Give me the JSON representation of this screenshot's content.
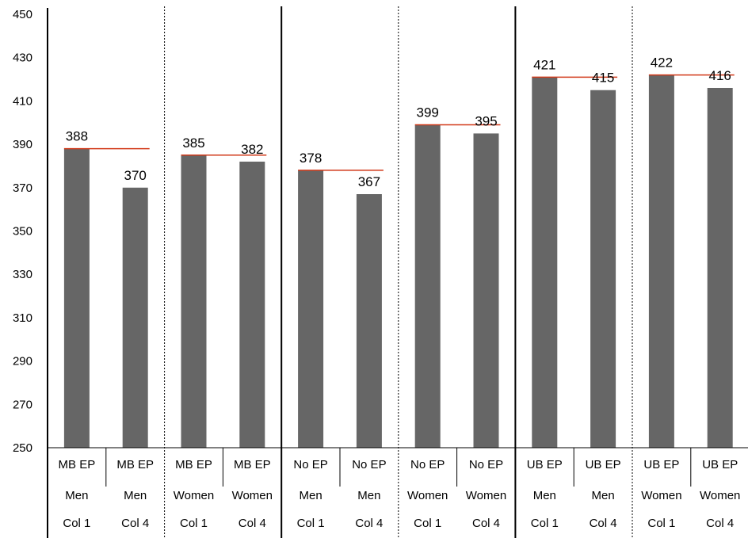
{
  "chart_data": {
    "type": "bar",
    "title": "",
    "xlabel": "",
    "ylabel": "",
    "ylim": [
      250,
      450
    ],
    "yticks": [
      250,
      270,
      290,
      310,
      330,
      350,
      370,
      390,
      410,
      430,
      450
    ],
    "grid": false,
    "legend": "none",
    "categories": [
      [
        "MB EP",
        "Men",
        "Col 1"
      ],
      [
        "MB EP",
        "Men",
        "Col 4"
      ],
      [
        "MB EP",
        "Women",
        "Col 1"
      ],
      [
        "MB EP",
        "Women",
        "Col 4"
      ],
      [
        "No EP",
        "Men",
        "Col 1"
      ],
      [
        "No EP",
        "Men",
        "Col 4"
      ],
      [
        "No EP",
        "Women",
        "Col 1"
      ],
      [
        "No EP",
        "Women",
        "Col 4"
      ],
      [
        "UB EP",
        "Men",
        "Col 1"
      ],
      [
        "UB EP",
        "Men",
        "Col 4"
      ],
      [
        "UB EP",
        "Women",
        "Col 1"
      ],
      [
        "UB EP",
        "Women",
        "Col 4"
      ]
    ],
    "series": [
      {
        "values": [
          388,
          370,
          385,
          382,
          378,
          367,
          399,
          395,
          421,
          415,
          422,
          416
        ]
      }
    ],
    "reference_lines": [
      388,
      385,
      378,
      399,
      421,
      422
    ],
    "colors": {
      "bar": "#666666",
      "reference_line": "#d23a1a",
      "axis": "#000000",
      "divider": "#000000"
    }
  }
}
